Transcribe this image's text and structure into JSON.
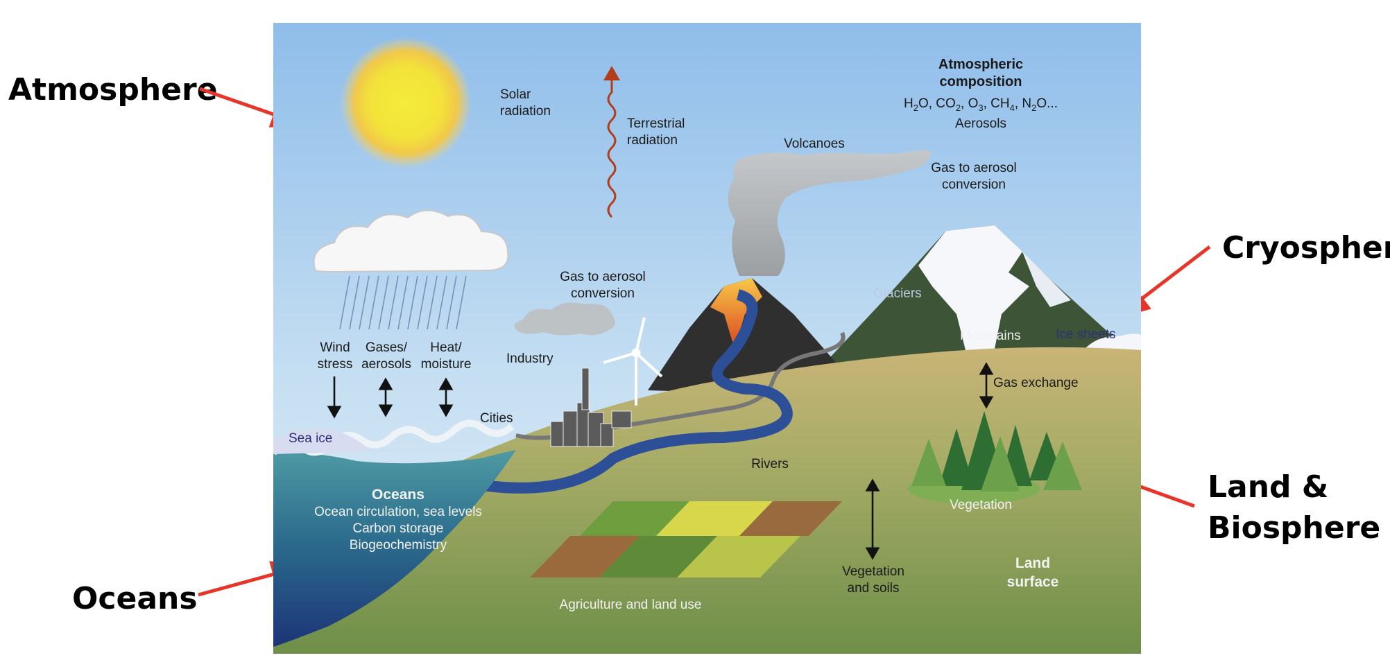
{
  "outer_labels": {
    "atmosphere": "Atmosphere",
    "cryosphere": "Cryosphere",
    "land_line1": "Land &",
    "land_line2": "Biosphere",
    "oceans": "Oceans"
  },
  "diagram": {
    "solar_1": "Solar",
    "solar_2": "radiation",
    "terrestrial_1": "Terrestrial",
    "terrestrial_2": "radiation",
    "atm_comp_1": "Atmospheric",
    "atm_comp_2": "composition",
    "aerosols": "Aerosols",
    "volcanoes": "Volcanoes",
    "gas_aerosol_volcano_1": "Gas to aerosol",
    "gas_aerosol_volcano_2": "conversion",
    "gas_aerosol_industry_1": "Gas to aerosol",
    "gas_aerosol_industry_2": "conversion",
    "industry": "Industry",
    "cities": "Cities",
    "glaciers": "Glaciers",
    "mountains": "Mountains",
    "ice_sheets": "Ice sheets",
    "gas_exchange": "Gas exchange",
    "wind_1": "Wind",
    "wind_2": "stress",
    "gases_1": "Gases/",
    "gases_2": "aerosols",
    "heat_1": "Heat/",
    "heat_2": "moisture",
    "sea_ice": "Sea ice",
    "rivers": "Rivers",
    "oceans_title": "Oceans",
    "oceans_1": "Ocean circulation, sea levels",
    "oceans_2": "Carbon storage",
    "oceans_3": "Biogeochemistry",
    "vegetation": "Vegetation",
    "veg_soils_1": "Vegetation",
    "veg_soils_2": "and soils",
    "land_surface_1": "Land",
    "land_surface_2": "surface",
    "agriculture": "Agriculture and land use"
  },
  "colors": {
    "arrow_red": "#e8352a",
    "sky_top": "#8fbdea",
    "sky_bottom": "#dfeef7",
    "ocean": "#2f6f8f",
    "land": "#a8ad6a"
  }
}
